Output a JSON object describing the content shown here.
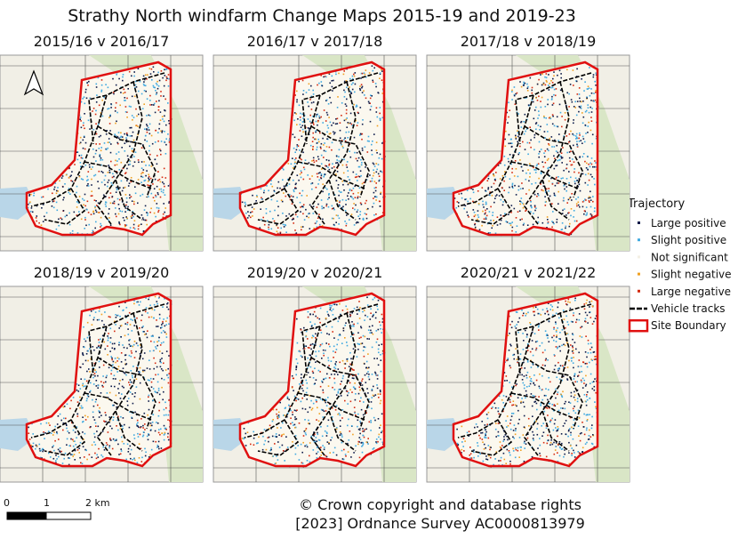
{
  "title": "Strathy North windfarm Change Maps 2015-19 and 2019-23",
  "panels": [
    {
      "title": "2015/16 v 2016/17"
    },
    {
      "title": "2016/17 v 2017/18"
    },
    {
      "title": "2017/18 v 2018/19"
    },
    {
      "title": "2018/19 v 2019/20"
    },
    {
      "title": "2019/20 v 2020/21"
    },
    {
      "title": "2020/21 v 2021/22"
    }
  ],
  "legend": {
    "title": "Trajectory",
    "items": [
      {
        "label": "Large positive",
        "color": "#0d1b4a"
      },
      {
        "label": "Slight positive",
        "color": "#3fa9e0"
      },
      {
        "label": "Not significant",
        "color": "#f4f0e4"
      },
      {
        "label": "Slight negative",
        "color": "#f0a020"
      },
      {
        "label": "Large negative",
        "color": "#d42a10"
      },
      {
        "label": "Vehicle tracks",
        "color": "#000000"
      },
      {
        "label": "Site Boundary",
        "color": "#e01010"
      }
    ]
  },
  "scale_bar": {
    "labels": [
      "0",
      "1",
      "2 km"
    ]
  },
  "copyright": [
    "© Crown copyright and database rights",
    "[2023] Ordnance Survey AC0000813979"
  ]
}
